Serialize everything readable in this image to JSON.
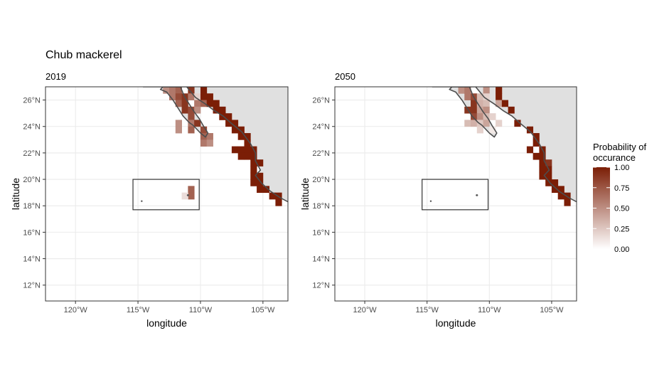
{
  "chart_data": {
    "type": "heatmap",
    "title": "Chub mackerel",
    "xlabel": "longitude",
    "ylabel": "latitude",
    "xlim": [
      -122.4,
      -103.0
    ],
    "ylim": [
      10.8,
      27.0
    ],
    "x_ticks": [
      {
        "value": -120,
        "label": "120°W"
      },
      {
        "value": -115,
        "label": "115°W"
      },
      {
        "value": -110,
        "label": "110°W"
      },
      {
        "value": -105,
        "label": "105°W"
      }
    ],
    "y_ticks": [
      {
        "value": 12,
        "label": "12°N"
      },
      {
        "value": 14,
        "label": "14°N"
      },
      {
        "value": 16,
        "label": "16°N"
      },
      {
        "value": 18,
        "label": "18°N"
      },
      {
        "value": 20,
        "label": "20°N"
      },
      {
        "value": 22,
        "label": "22°N"
      },
      {
        "value": 24,
        "label": "24°N"
      },
      {
        "value": 26,
        "label": "26°N"
      }
    ],
    "grid": true,
    "legend": {
      "title_line1": "Probability of",
      "title_line2": "occurance",
      "position": "right",
      "low_color": "#ffffff",
      "high_color": "#7b1e06",
      "breaks": [
        {
          "value": 1.0,
          "label": "1.00"
        },
        {
          "value": 0.75,
          "label": "0.75"
        },
        {
          "value": 0.5,
          "label": "0.50"
        },
        {
          "value": 0.25,
          "label": "0.25"
        },
        {
          "value": 0.0,
          "label": "0.00"
        }
      ]
    },
    "inset_box": {
      "lon": [
        -115.4,
        -110.1
      ],
      "lat": [
        17.7,
        20.0
      ]
    },
    "panels": [
      {
        "label": "2019",
        "cells": [
          [
            -112.75,
            26.75,
            0.5
          ],
          [
            -112.25,
            26.75,
            0.6
          ],
          [
            -111.75,
            26.75,
            0.7
          ],
          [
            -110.75,
            26.75,
            0.9
          ],
          [
            -109.75,
            26.75,
            1.0
          ],
          [
            -112.25,
            26.25,
            0.6
          ],
          [
            -111.75,
            26.25,
            0.8
          ],
          [
            -111.25,
            26.25,
            0.9
          ],
          [
            -110.75,
            26.25,
            0.6
          ],
          [
            -110.25,
            26.25,
            0.2
          ],
          [
            -109.75,
            26.25,
            1.0
          ],
          [
            -109.25,
            26.25,
            1.0
          ],
          [
            -111.75,
            25.75,
            0.7
          ],
          [
            -111.25,
            25.75,
            0.9
          ],
          [
            -110.25,
            25.75,
            0.6
          ],
          [
            -109.75,
            25.75,
            0.7
          ],
          [
            -109.25,
            25.75,
            1.0
          ],
          [
            -108.75,
            25.75,
            1.0
          ],
          [
            -111.25,
            25.25,
            0.9
          ],
          [
            -110.75,
            25.25,
            0.8
          ],
          [
            -110.25,
            25.25,
            0.5
          ],
          [
            -108.75,
            25.25,
            1.0
          ],
          [
            -108.25,
            25.25,
            1.0
          ],
          [
            -110.75,
            24.75,
            0.8
          ],
          [
            -108.25,
            24.75,
            1.0
          ],
          [
            -107.75,
            24.75,
            1.0
          ],
          [
            -111.75,
            24.25,
            0.5
          ],
          [
            -110.75,
            24.25,
            0.6
          ],
          [
            -110.25,
            24.25,
            0.9
          ],
          [
            -107.75,
            24.25,
            1.0
          ],
          [
            -107.25,
            24.25,
            1.0
          ],
          [
            -111.75,
            23.75,
            0.5
          ],
          [
            -110.75,
            23.75,
            0.7
          ],
          [
            -109.75,
            23.75,
            0.8
          ],
          [
            -107.25,
            23.75,
            1.0
          ],
          [
            -106.75,
            23.75,
            1.0
          ],
          [
            -109.75,
            23.25,
            0.7
          ],
          [
            -109.25,
            23.25,
            0.6
          ],
          [
            -106.75,
            23.25,
            1.0
          ],
          [
            -106.25,
            23.25,
            1.0
          ],
          [
            -109.75,
            22.75,
            0.6
          ],
          [
            -109.25,
            22.75,
            0.5
          ],
          [
            -106.25,
            22.75,
            1.0
          ],
          [
            -107.25,
            22.25,
            1.0
          ],
          [
            -106.75,
            22.25,
            1.0
          ],
          [
            -106.25,
            22.25,
            1.0
          ],
          [
            -105.75,
            22.25,
            1.0
          ],
          [
            -106.75,
            21.75,
            1.0
          ],
          [
            -106.25,
            21.75,
            1.0
          ],
          [
            -105.75,
            21.75,
            1.0
          ],
          [
            -105.75,
            21.25,
            1.0
          ],
          [
            -105.25,
            21.25,
            1.0
          ],
          [
            -105.75,
            20.75,
            1.0
          ],
          [
            -105.75,
            20.25,
            1.0
          ],
          [
            -105.25,
            20.25,
            1.0
          ],
          [
            -105.75,
            19.75,
            1.0
          ],
          [
            -105.25,
            19.75,
            1.0
          ],
          [
            -105.25,
            19.25,
            1.0
          ],
          [
            -104.75,
            19.25,
            1.0
          ],
          [
            -104.25,
            18.75,
            1.0
          ],
          [
            -103.75,
            18.75,
            1.0
          ],
          [
            -103.75,
            18.25,
            1.0
          ],
          [
            -110.75,
            19.25,
            0.7
          ],
          [
            -110.75,
            18.75,
            0.7
          ],
          [
            -111.25,
            18.75,
            0.15
          ]
        ]
      },
      {
        "label": "2050",
        "cells": [
          [
            -112.25,
            26.75,
            0.5
          ],
          [
            -111.75,
            26.75,
            0.6
          ],
          [
            -110.25,
            26.75,
            0.5
          ],
          [
            -109.25,
            26.75,
            1.0
          ],
          [
            -111.75,
            26.25,
            0.6
          ],
          [
            -111.25,
            26.25,
            0.8
          ],
          [
            -110.75,
            26.25,
            0.3
          ],
          [
            -110.25,
            26.25,
            0.2
          ],
          [
            -109.25,
            26.25,
            1.0
          ],
          [
            -111.25,
            25.75,
            0.9
          ],
          [
            -110.75,
            25.75,
            0.35
          ],
          [
            -110.25,
            25.75,
            0.3
          ],
          [
            -109.25,
            25.75,
            0.4
          ],
          [
            -108.75,
            25.75,
            1.0
          ],
          [
            -111.75,
            25.25,
            0.9
          ],
          [
            -111.25,
            25.25,
            0.9
          ],
          [
            -110.75,
            25.25,
            0.4
          ],
          [
            -110.25,
            25.25,
            0.5
          ],
          [
            -108.25,
            25.25,
            1.0
          ],
          [
            -111.25,
            24.75,
            0.8
          ],
          [
            -110.75,
            24.75,
            0.5
          ],
          [
            -110.25,
            24.75,
            0.3
          ],
          [
            -109.75,
            24.75,
            0.2
          ],
          [
            -111.75,
            24.25,
            0.3
          ],
          [
            -111.25,
            24.25,
            0.35
          ],
          [
            -110.75,
            24.25,
            0.25
          ],
          [
            -110.25,
            24.25,
            0.4
          ],
          [
            -109.25,
            24.25,
            0.2
          ],
          [
            -107.75,
            24.25,
            1.0
          ],
          [
            -110.75,
            23.75,
            0.2
          ],
          [
            -109.75,
            23.75,
            0.1
          ],
          [
            -106.75,
            23.75,
            1.0
          ],
          [
            -106.25,
            23.25,
            1.0
          ],
          [
            -106.25,
            22.75,
            1.0
          ],
          [
            -106.75,
            22.25,
            1.0
          ],
          [
            -105.75,
            22.25,
            1.0
          ],
          [
            -106.25,
            21.75,
            1.0
          ],
          [
            -105.75,
            21.75,
            1.0
          ],
          [
            -105.75,
            21.25,
            1.0
          ],
          [
            -105.25,
            21.25,
            0.9
          ],
          [
            -105.75,
            20.75,
            1.0
          ],
          [
            -105.25,
            20.75,
            1.0
          ],
          [
            -105.75,
            20.25,
            1.0
          ],
          [
            -105.25,
            20.25,
            1.0
          ],
          [
            -105.25,
            19.75,
            1.0
          ],
          [
            -104.75,
            19.75,
            1.0
          ],
          [
            -104.75,
            19.25,
            1.0
          ],
          [
            -104.25,
            19.25,
            1.0
          ],
          [
            -104.25,
            18.75,
            1.0
          ],
          [
            -103.75,
            18.75,
            1.0
          ],
          [
            -103.75,
            18.25,
            1.0
          ]
        ]
      }
    ],
    "land_color": "#e0e0e0",
    "coast_color": "#4d4d4d"
  }
}
